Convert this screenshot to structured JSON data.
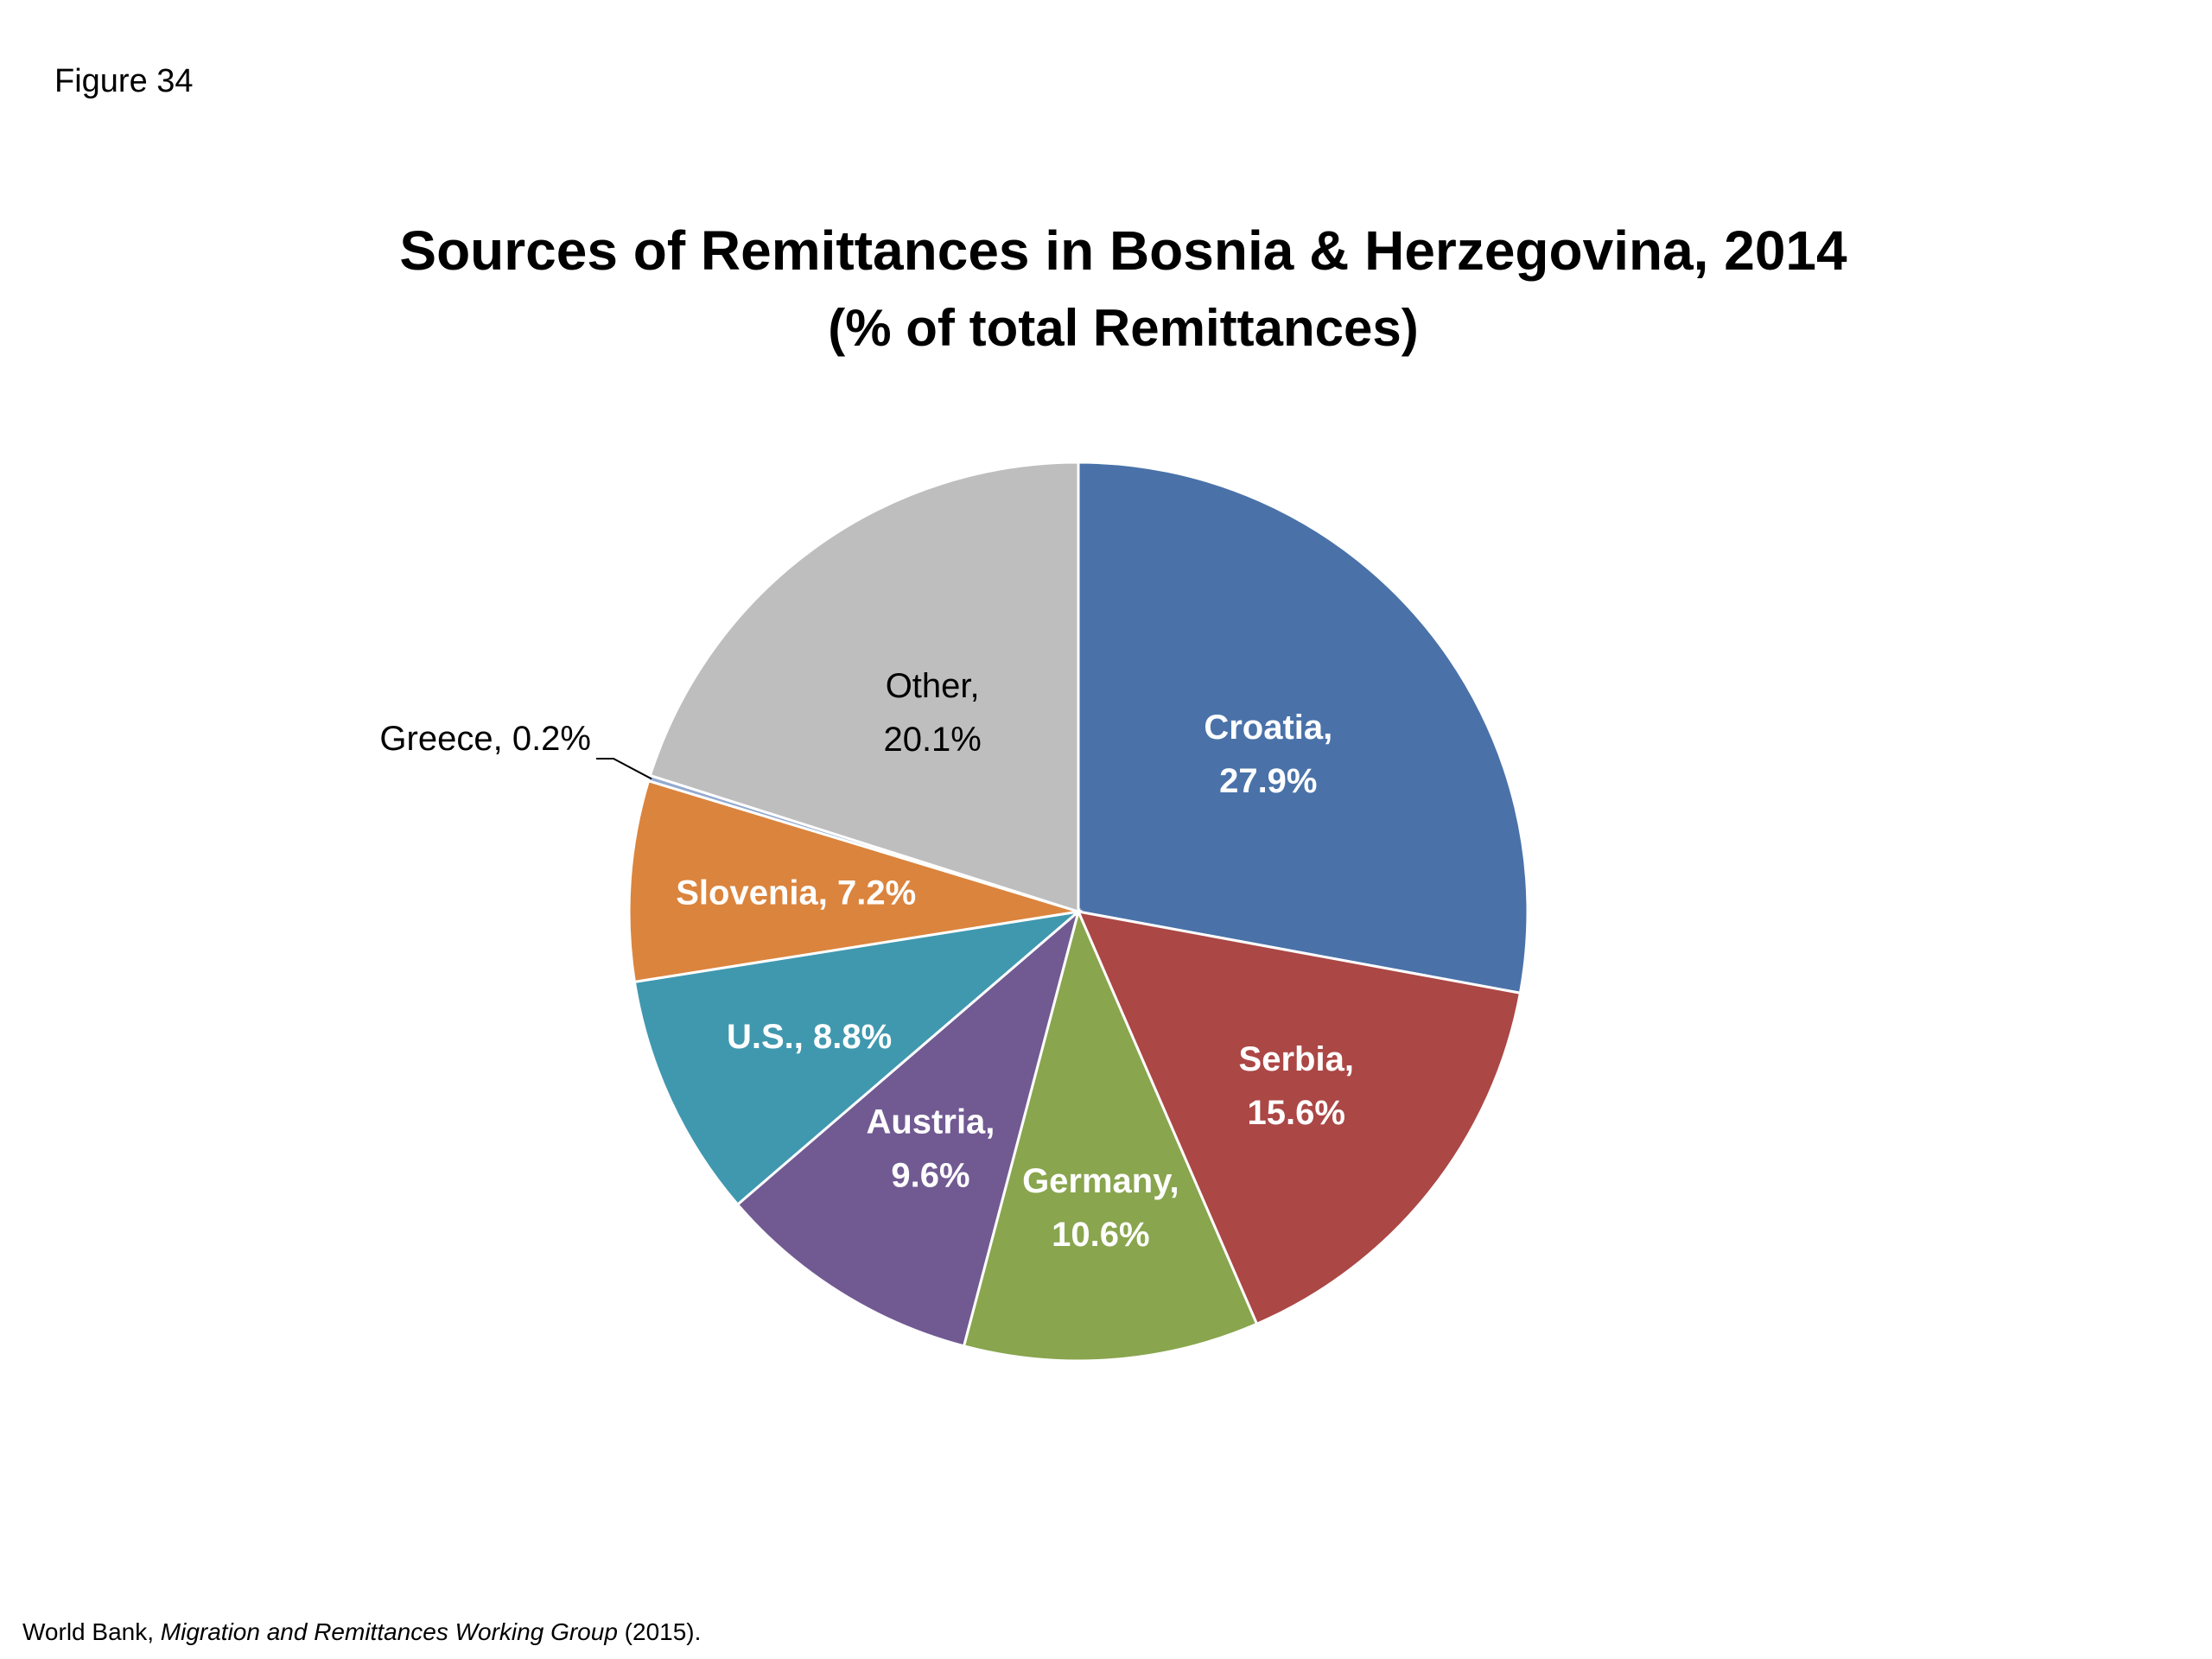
{
  "figure_label": "Figure 34",
  "source": {
    "prefix": "World Bank, ",
    "italic": "Migration and Remittances Working Group",
    "suffix": " (2015)."
  },
  "chart_data": {
    "type": "pie",
    "title": "Sources of Remittances in Bosnia & Herzegovina, 2014",
    "subtitle": "(% of total Remittances)",
    "start_angle_deg": 0,
    "direction": "clockwise",
    "slices": [
      {
        "name": "Croatia",
        "value": 27.9,
        "label_line1": "Croatia,",
        "label_line2": "27.9%",
        "color": "#4A72A9",
        "label_color": "#FFFFFF",
        "bold": true
      },
      {
        "name": "Serbia",
        "value": 15.6,
        "label_line1": "Serbia,",
        "label_line2": "15.6%",
        "color": "#AB4745",
        "label_color": "#FFFFFF",
        "bold": true
      },
      {
        "name": "Germany",
        "value": 10.6,
        "label_line1": "Germany,",
        "label_line2": "10.6%",
        "color": "#89A54E",
        "label_color": "#FFFFFF",
        "bold": true
      },
      {
        "name": "Austria",
        "value": 9.6,
        "label_line1": "Austria,",
        "label_line2": "9.6%",
        "color": "#715A92",
        "label_color": "#FFFFFF",
        "bold": true
      },
      {
        "name": "U.S.",
        "value": 8.8,
        "label_line1": "U.S., 8.8%",
        "label_line2": "",
        "color": "#4098AF",
        "label_color": "#FFFFFF",
        "bold": true
      },
      {
        "name": "Slovenia",
        "value": 7.2,
        "label_line1": "Slovenia, 7.2%",
        "label_line2": "",
        "color": "#DB843D",
        "label_color": "#FFFFFF",
        "bold": true
      },
      {
        "name": "Greece",
        "value": 0.2,
        "label_line1": "Greece, 0.2%",
        "label_line2": "",
        "color": "#93A9CF",
        "label_color": "#000000",
        "bold": false,
        "leader_line": true
      },
      {
        "name": "Other",
        "value": 20.1,
        "label_line1": "Other,",
        "label_line2": "20.1%",
        "color": "#BEBEBE",
        "label_color": "#000000",
        "bold": false
      }
    ]
  }
}
